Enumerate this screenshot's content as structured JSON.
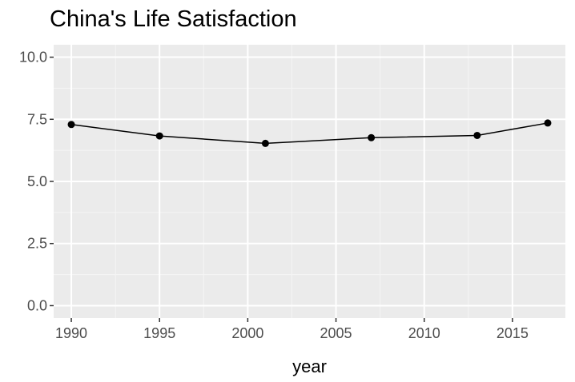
{
  "chart_data": {
    "type": "line",
    "title": "China's Life Satisfaction",
    "xlabel": "year",
    "ylabel": "",
    "x": [
      1990,
      1995,
      2001,
      2007,
      2013,
      2017
    ],
    "series": [
      {
        "values": [
          7.29,
          6.83,
          6.53,
          6.76,
          6.85,
          7.35
        ]
      }
    ],
    "xlim": [
      1989,
      2018
    ],
    "ylim": [
      -0.5,
      10.5
    ],
    "xticks": [
      1990,
      1995,
      2000,
      2005,
      2010,
      2015
    ],
    "xtick_labels": [
      "1990",
      "1995",
      "2000",
      "2005",
      "2010",
      "2015"
    ],
    "yticks": [
      0,
      2.5,
      5,
      7.5,
      10
    ],
    "ytick_labels": [
      "0.0",
      "2.5",
      "5.0",
      "7.5",
      "10.0"
    ],
    "grid": true,
    "legend": "none",
    "colors": {
      "panel_background": "#ebebeb",
      "grid_major": "#ffffff",
      "grid_minor": "#f5f5f5",
      "line": "#000000",
      "point": "#000000",
      "tick_text": "#4d4d4d",
      "tick_mark": "#333333"
    }
  }
}
